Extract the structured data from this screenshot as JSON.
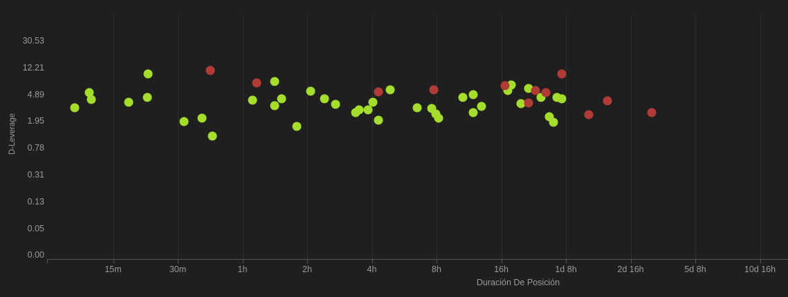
{
  "chart_data": {
    "type": "scatter",
    "title": "",
    "xlabel": "Duración De Posición",
    "ylabel": "D-Leverage",
    "grid": "vertical-only",
    "legend": "none",
    "x_axis": {
      "scale": "logarithmic time (doubling per tick)",
      "tick_labels": [
        "15m",
        "30m",
        "1h",
        "2h",
        "4h",
        "8h",
        "16h",
        "1d 8h",
        "2d 16h",
        "5d 8h",
        "10d 16h"
      ],
      "tick_hours": [
        0.25,
        0.5,
        1,
        2,
        4,
        8,
        16,
        32,
        64,
        128,
        256
      ]
    },
    "y_axis": {
      "scale": "logarithmic (factor 2.5 per tick)",
      "tick_labels": [
        "30.53",
        "12.21",
        "4.89",
        "1.95",
        "0.78",
        "0.31",
        "0.13",
        "0.05",
        "0.00"
      ],
      "tick_values": [
        30.53,
        12.21,
        4.89,
        1.95,
        0.78,
        0.31,
        0.13,
        0.05,
        0.0
      ]
    },
    "series": [
      {
        "name": "green",
        "color": "#a5dd2b",
        "points_format": "[duration_hours, d_leverage]",
        "points": [
          [
            0.166,
            3.08
          ],
          [
            0.194,
            5.17
          ],
          [
            0.198,
            4.05
          ],
          [
            0.296,
            3.69
          ],
          [
            0.364,
            9.8
          ],
          [
            0.362,
            4.41
          ],
          [
            0.536,
            1.92
          ],
          [
            0.648,
            2.17
          ],
          [
            0.725,
            1.16
          ],
          [
            1.114,
            4.0
          ],
          [
            1.408,
            3.31
          ],
          [
            1.412,
            7.55
          ],
          [
            1.515,
            4.18
          ],
          [
            1.783,
            1.61
          ],
          [
            2.068,
            5.43
          ],
          [
            2.399,
            4.18
          ],
          [
            2.712,
            3.47
          ],
          [
            3.372,
            2.63
          ],
          [
            3.499,
            2.88
          ],
          [
            3.852,
            2.86
          ],
          [
            4.03,
            3.73
          ],
          [
            4.276,
            2.0
          ],
          [
            4.886,
            5.74
          ],
          [
            6.5,
            3.05
          ],
          [
            7.57,
            3.04
          ],
          [
            7.94,
            2.5
          ],
          [
            8.18,
            2.17
          ],
          [
            10.6,
            4.41
          ],
          [
            11.85,
            4.77
          ],
          [
            11.85,
            2.63
          ],
          [
            13.0,
            3.23
          ],
          [
            17.17,
            5.5
          ],
          [
            17.8,
            6.64
          ],
          [
            19.83,
            3.51
          ],
          [
            21.43,
            5.93
          ],
          [
            24.5,
            4.41
          ],
          [
            26.8,
            2.24
          ],
          [
            27.9,
            1.86
          ],
          [
            29.0,
            4.36
          ],
          [
            30.6,
            4.2
          ]
        ]
      },
      {
        "name": "red",
        "color": "#b23b38",
        "points_format": "[duration_hours, d_leverage]",
        "points": [
          [
            0.711,
            10.9
          ],
          [
            1.164,
            7.28
          ],
          [
            4.276,
            5.36
          ],
          [
            7.74,
            5.74
          ],
          [
            16.67,
            6.56
          ],
          [
            21.5,
            3.6
          ],
          [
            23.16,
            5.57
          ],
          [
            25.9,
            5.18
          ],
          [
            30.5,
            9.8
          ],
          [
            40.9,
            2.44
          ],
          [
            50.1,
            3.91
          ],
          [
            80.2,
            2.6
          ]
        ]
      }
    ]
  },
  "colors": {
    "background": "#1f1f1f",
    "gridline": "#2f2f2f",
    "axis_line": "#565656",
    "tick_label": "#9a9a9a",
    "point_green": "#a5dd2b",
    "point_red": "#b23b38"
  }
}
